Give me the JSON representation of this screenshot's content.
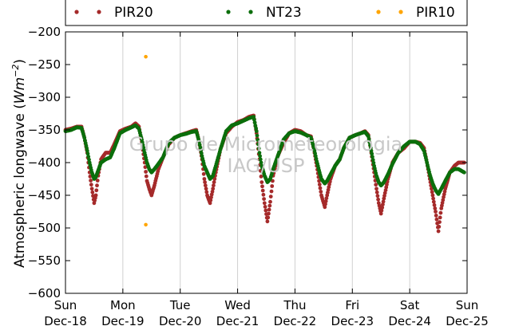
{
  "chart_data": {
    "type": "scatter",
    "ylabel_text": "Atmospheric longwave (",
    "ylabel_unit": "Wm",
    "ylabel_exp": "−2",
    "ylabel_close": ")",
    "watermark": [
      "Grupo de Micrometeorologia",
      "IAG/USP"
    ],
    "xlim": [
      0,
      7
    ],
    "ylim": [
      -600,
      -200
    ],
    "yticks": [
      -600,
      -550,
      -500,
      -450,
      -400,
      -350,
      -300,
      -250,
      -200
    ],
    "ytick_labels": [
      "−600",
      "−550",
      "−500",
      "−450",
      "−400",
      "−350",
      "−300",
      "−250",
      "−200"
    ],
    "xticks": [
      {
        "x": 0,
        "day": "Sun",
        "date": "Dec-18"
      },
      {
        "x": 1,
        "day": "Mon",
        "date": "Dec-19"
      },
      {
        "x": 2,
        "day": "Tue",
        "date": "Dec-20"
      },
      {
        "x": 3,
        "day": "Wed",
        "date": "Dec-21"
      },
      {
        "x": 4,
        "day": "Thu",
        "date": "Dec-22"
      },
      {
        "x": 5,
        "day": "Fri",
        "date": "Dec-23"
      },
      {
        "x": 6,
        "day": "Sat",
        "date": "Dec-24"
      },
      {
        "x": 7,
        "day": "Sun",
        "date": "Dec-25"
      }
    ],
    "grid": "vertical",
    "legend_placement": "top",
    "series": [
      {
        "name": "PIR20",
        "color": "#a52a2a",
        "points": [
          [
            0.0,
            -350
          ],
          [
            0.1,
            -348
          ],
          [
            0.2,
            -345
          ],
          [
            0.28,
            -345
          ],
          [
            0.33,
            -362
          ],
          [
            0.38,
            -385
          ],
          [
            0.42,
            -415
          ],
          [
            0.46,
            -440
          ],
          [
            0.5,
            -462
          ],
          [
            0.53,
            -450
          ],
          [
            0.57,
            -420
          ],
          [
            0.62,
            -395
          ],
          [
            0.7,
            -385
          ],
          [
            0.78,
            -385
          ],
          [
            0.85,
            -372
          ],
          [
            0.95,
            -352
          ],
          [
            1.05,
            -348
          ],
          [
            1.15,
            -345
          ],
          [
            1.22,
            -340
          ],
          [
            1.28,
            -345
          ],
          [
            1.33,
            -368
          ],
          [
            1.38,
            -400
          ],
          [
            1.42,
            -428
          ],
          [
            1.46,
            -440
          ],
          [
            1.5,
            -450
          ],
          [
            1.55,
            -435
          ],
          [
            1.62,
            -410
          ],
          [
            1.7,
            -392
          ],
          [
            1.8,
            -372
          ],
          [
            1.9,
            -362
          ],
          [
            2.0,
            -358
          ],
          [
            2.1,
            -355
          ],
          [
            2.2,
            -352
          ],
          [
            2.28,
            -350
          ],
          [
            2.33,
            -368
          ],
          [
            2.38,
            -395
          ],
          [
            2.42,
            -425
          ],
          [
            2.47,
            -450
          ],
          [
            2.52,
            -462
          ],
          [
            2.57,
            -440
          ],
          [
            2.62,
            -415
          ],
          [
            2.7,
            -380
          ],
          [
            2.8,
            -355
          ],
          [
            2.9,
            -345
          ],
          [
            3.0,
            -338
          ],
          [
            3.1,
            -335
          ],
          [
            3.2,
            -330
          ],
          [
            3.28,
            -328
          ],
          [
            3.33,
            -355
          ],
          [
            3.38,
            -395
          ],
          [
            3.42,
            -430
          ],
          [
            3.47,
            -462
          ],
          [
            3.52,
            -490
          ],
          [
            3.57,
            -460
          ],
          [
            3.62,
            -420
          ],
          [
            3.7,
            -390
          ],
          [
            3.8,
            -370
          ],
          [
            3.9,
            -355
          ],
          [
            4.0,
            -350
          ],
          [
            4.1,
            -352
          ],
          [
            4.2,
            -358
          ],
          [
            4.28,
            -360
          ],
          [
            4.33,
            -380
          ],
          [
            4.38,
            -405
          ],
          [
            4.42,
            -428
          ],
          [
            4.46,
            -450
          ],
          [
            4.52,
            -468
          ],
          [
            4.56,
            -450
          ],
          [
            4.62,
            -425
          ],
          [
            4.7,
            -405
          ],
          [
            4.78,
            -395
          ],
          [
            4.85,
            -378
          ],
          [
            4.95,
            -362
          ],
          [
            5.05,
            -358
          ],
          [
            5.15,
            -355
          ],
          [
            5.22,
            -352
          ],
          [
            5.28,
            -358
          ],
          [
            5.33,
            -385
          ],
          [
            5.38,
            -415
          ],
          [
            5.42,
            -440
          ],
          [
            5.46,
            -462
          ],
          [
            5.5,
            -478
          ],
          [
            5.55,
            -455
          ],
          [
            5.62,
            -425
          ],
          [
            5.7,
            -400
          ],
          [
            5.8,
            -385
          ],
          [
            5.9,
            -378
          ],
          [
            6.0,
            -368
          ],
          [
            6.1,
            -368
          ],
          [
            6.18,
            -370
          ],
          [
            6.25,
            -378
          ],
          [
            6.3,
            -400
          ],
          [
            6.35,
            -425
          ],
          [
            6.4,
            -450
          ],
          [
            6.45,
            -475
          ],
          [
            6.5,
            -505
          ],
          [
            6.55,
            -470
          ],
          [
            6.62,
            -440
          ],
          [
            6.7,
            -415
          ],
          [
            6.78,
            -405
          ],
          [
            6.85,
            -400
          ],
          [
            6.95,
            -400
          ]
        ]
      },
      {
        "name": "NT23",
        "color": "#0b6e0b",
        "points": [
          [
            0.0,
            -352
          ],
          [
            0.1,
            -350
          ],
          [
            0.2,
            -346
          ],
          [
            0.28,
            -347
          ],
          [
            0.33,
            -362
          ],
          [
            0.38,
            -382
          ],
          [
            0.42,
            -400
          ],
          [
            0.46,
            -415
          ],
          [
            0.5,
            -425
          ],
          [
            0.53,
            -422
          ],
          [
            0.57,
            -412
          ],
          [
            0.62,
            -400
          ],
          [
            0.7,
            -395
          ],
          [
            0.78,
            -392
          ],
          [
            0.85,
            -378
          ],
          [
            0.95,
            -355
          ],
          [
            1.05,
            -350
          ],
          [
            1.15,
            -346
          ],
          [
            1.22,
            -343
          ],
          [
            1.28,
            -348
          ],
          [
            1.33,
            -365
          ],
          [
            1.38,
            -385
          ],
          [
            1.42,
            -400
          ],
          [
            1.46,
            -410
          ],
          [
            1.5,
            -415
          ],
          [
            1.55,
            -410
          ],
          [
            1.62,
            -402
          ],
          [
            1.7,
            -392
          ],
          [
            1.8,
            -370
          ],
          [
            1.9,
            -362
          ],
          [
            2.0,
            -358
          ],
          [
            2.1,
            -356
          ],
          [
            2.2,
            -353
          ],
          [
            2.28,
            -352
          ],
          [
            2.33,
            -368
          ],
          [
            2.38,
            -390
          ],
          [
            2.42,
            -405
          ],
          [
            2.47,
            -415
          ],
          [
            2.52,
            -425
          ],
          [
            2.57,
            -420
          ],
          [
            2.62,
            -405
          ],
          [
            2.7,
            -380
          ],
          [
            2.8,
            -352
          ],
          [
            2.9,
            -343
          ],
          [
            3.0,
            -340
          ],
          [
            3.1,
            -336
          ],
          [
            3.2,
            -332
          ],
          [
            3.28,
            -330
          ],
          [
            3.33,
            -352
          ],
          [
            3.38,
            -385
          ],
          [
            3.42,
            -405
          ],
          [
            3.47,
            -420
          ],
          [
            3.52,
            -430
          ],
          [
            3.57,
            -425
          ],
          [
            3.62,
            -410
          ],
          [
            3.7,
            -390
          ],
          [
            3.8,
            -365
          ],
          [
            3.9,
            -355
          ],
          [
            4.0,
            -352
          ],
          [
            4.1,
            -354
          ],
          [
            4.2,
            -358
          ],
          [
            4.28,
            -362
          ],
          [
            4.33,
            -378
          ],
          [
            4.38,
            -398
          ],
          [
            4.42,
            -412
          ],
          [
            4.46,
            -425
          ],
          [
            4.52,
            -432
          ],
          [
            4.56,
            -428
          ],
          [
            4.62,
            -418
          ],
          [
            4.7,
            -405
          ],
          [
            4.78,
            -395
          ],
          [
            4.85,
            -378
          ],
          [
            4.95,
            -362
          ],
          [
            5.05,
            -358
          ],
          [
            5.15,
            -355
          ],
          [
            5.22,
            -353
          ],
          [
            5.28,
            -360
          ],
          [
            5.33,
            -382
          ],
          [
            5.38,
            -405
          ],
          [
            5.42,
            -420
          ],
          [
            5.46,
            -430
          ],
          [
            5.5,
            -435
          ],
          [
            5.55,
            -430
          ],
          [
            5.62,
            -418
          ],
          [
            5.7,
            -402
          ],
          [
            5.8,
            -385
          ],
          [
            5.9,
            -375
          ],
          [
            6.0,
            -368
          ],
          [
            6.1,
            -368
          ],
          [
            6.18,
            -372
          ],
          [
            6.25,
            -382
          ],
          [
            6.3,
            -400
          ],
          [
            6.35,
            -418
          ],
          [
            6.4,
            -432
          ],
          [
            6.45,
            -442
          ],
          [
            6.5,
            -448
          ],
          [
            6.55,
            -440
          ],
          [
            6.62,
            -428
          ],
          [
            6.7,
            -415
          ],
          [
            6.78,
            -410
          ],
          [
            6.85,
            -410
          ],
          [
            6.95,
            -415
          ]
        ]
      },
      {
        "name": "PIR10",
        "color": "#ffa500",
        "points": [
          [
            1.4,
            -238
          ],
          [
            1.4,
            -495
          ]
        ]
      }
    ]
  }
}
